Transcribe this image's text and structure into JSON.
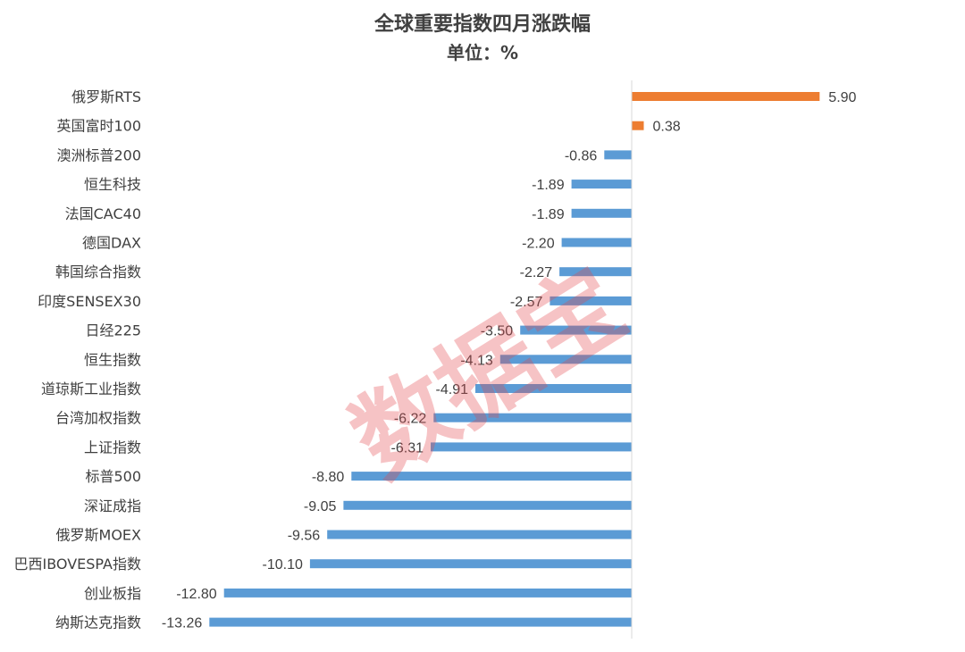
{
  "chart_data": {
    "type": "bar",
    "orientation": "horizontal",
    "title": "全球重要指数四月涨跌幅",
    "subtitle": "单位：%",
    "categories": [
      "俄罗斯RTS",
      "英国富时100",
      "澳洲标普200",
      "恒生科技",
      "法国CAC40",
      "德国DAX",
      "韩国综合指数",
      "印度SENSEX30",
      "日经225",
      "恒生指数",
      "道琼斯工业指数",
      "台湾加权指数",
      "上证指数",
      "标普500",
      "深证成指",
      "俄罗斯MOEX",
      "巴西IBOVESPA指数",
      "创业板指",
      "纳斯达克指数"
    ],
    "values": [
      5.9,
      0.38,
      -0.86,
      -1.89,
      -1.89,
      -2.2,
      -2.27,
      -2.57,
      -3.5,
      -4.13,
      -4.91,
      -6.22,
      -6.31,
      -8.8,
      -9.05,
      -9.56,
      -10.1,
      -12.8,
      -13.26
    ],
    "value_labels": [
      "5.90",
      "0.38",
      "-0.86",
      "-1.89",
      "-1.89",
      "-2.20",
      "-2.27",
      "-2.57",
      "-3.50",
      "-4.13",
      "-4.91",
      "-6.22",
      "-6.31",
      "-8.80",
      "-9.05",
      "-9.56",
      "-10.10",
      "-12.80",
      "-13.26"
    ],
    "colors": {
      "positive": "#ed7d31",
      "negative": "#5b9bd5",
      "axis": "#d9d9d9",
      "text": "#404040"
    },
    "grid": false,
    "legend": "none"
  },
  "watermark": {
    "text": "数据宝",
    "color": "#e5484d"
  }
}
